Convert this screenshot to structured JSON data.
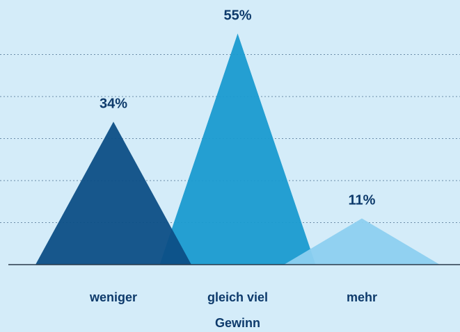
{
  "chart_data": {
    "type": "peak",
    "categories": [
      "weniger",
      "gleich viel Gewinn",
      "mehr"
    ],
    "values": [
      34,
      55,
      11
    ],
    "value_labels": [
      "34%",
      "55%",
      "11%"
    ],
    "colors": [
      "#0d4f86",
      "#1a9bd0",
      "#8dd0f0"
    ],
    "ylim": [
      0,
      60
    ],
    "yticks": [
      10,
      20,
      30,
      40,
      50
    ],
    "grid": true
  }
}
